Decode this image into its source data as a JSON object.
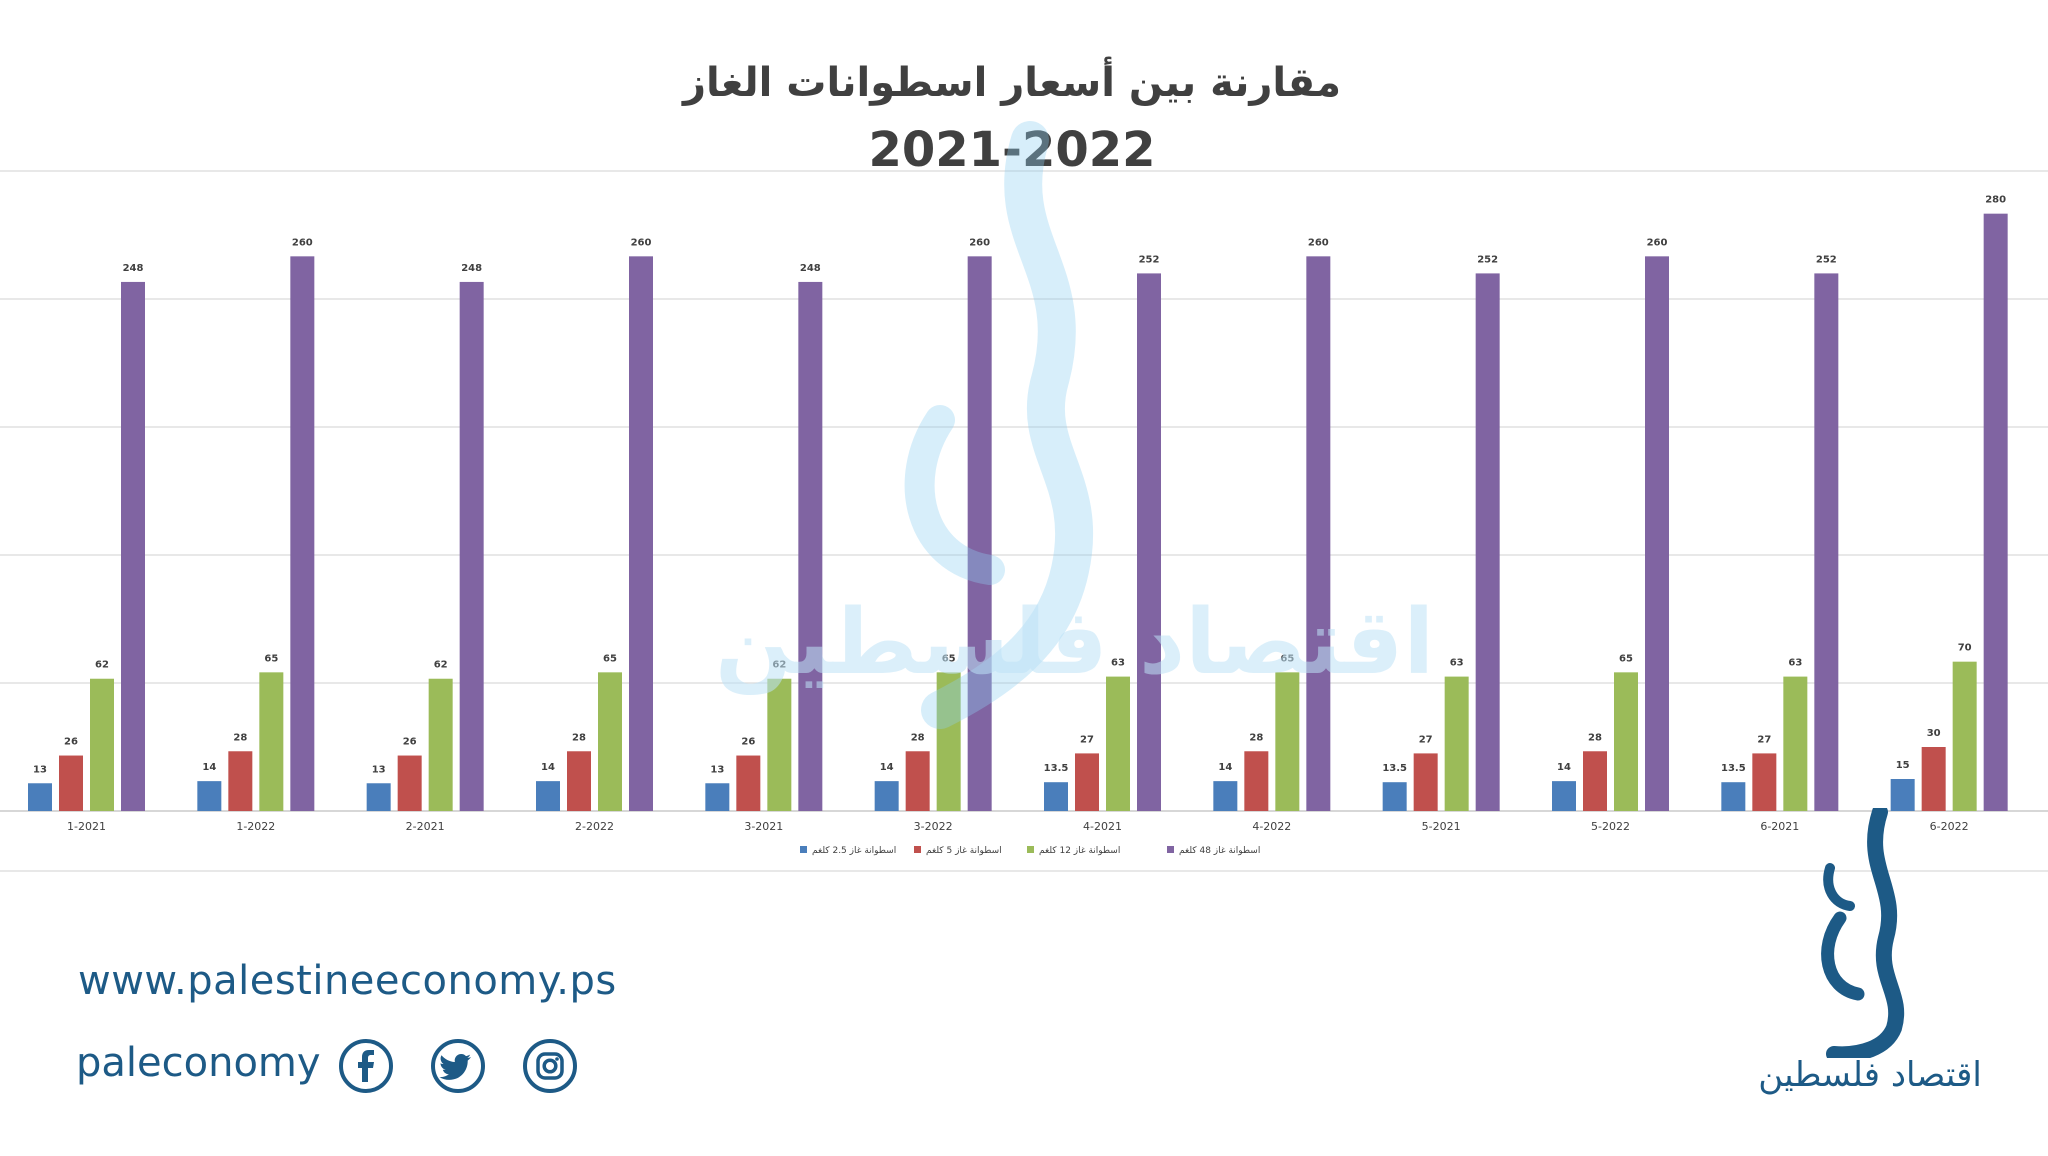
{
  "colors": {
    "series": [
      "#4a7ebb",
      "#c0504d",
      "#9bbb59",
      "#8064a2"
    ],
    "brand": "#1d5a86",
    "watermark": "#bfe3f7",
    "grid": "#d9d9d9"
  },
  "chart_data": {
    "type": "bar",
    "title": "مقارنة بين أسعار اسطوانات الغاز",
    "subtitle": "2021-2022",
    "categories": [
      "1-2021",
      "1-2022",
      "2-2021",
      "2-2022",
      "3-2021",
      "3-2022",
      "4-2021",
      "4-2022",
      "5-2021",
      "5-2022",
      "6-2021",
      "6-2022"
    ],
    "series": [
      {
        "name": "اسطوانة غاز 2.5 كلغم",
        "values": [
          13,
          14,
          13,
          14,
          13,
          14,
          13.5,
          14,
          13.5,
          14,
          13.5,
          15
        ]
      },
      {
        "name": "اسطوانة غاز 5 كلغم",
        "values": [
          26,
          28,
          26,
          28,
          26,
          28,
          27,
          28,
          27,
          28,
          27,
          30
        ]
      },
      {
        "name": "اسطوانة غاز 12 كلغم",
        "values": [
          62,
          65,
          62,
          65,
          62,
          65,
          63,
          65,
          63,
          65,
          63,
          70
        ]
      },
      {
        "name": "اسطوانة غاز 48 كلغم",
        "values": [
          248,
          260,
          248,
          260,
          248,
          260,
          252,
          260,
          252,
          260,
          252,
          280
        ]
      }
    ],
    "ylim": [
      0,
      300
    ],
    "grid": true,
    "legend": "bottom"
  },
  "watermark_text": "اقتصاد فلسطين",
  "footer": {
    "url": "www.palestineeconomy.ps",
    "handle": "paleconomy",
    "social_icons": [
      "facebook-icon",
      "twitter-icon",
      "instagram-icon"
    ]
  },
  "brand": {
    "name": "اقتصاد فلسطين"
  }
}
